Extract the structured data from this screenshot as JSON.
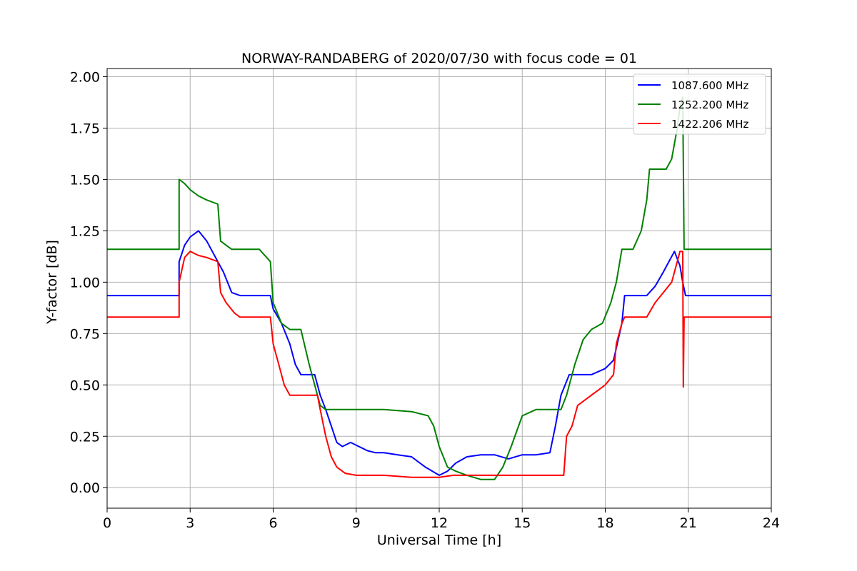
{
  "chart_data": {
    "type": "line",
    "title": "NORWAY-RANDABERG of 2020/07/30 with focus code = 01",
    "xlabel": "Universal Time [h]",
    "ylabel": "Y-factor [dB]",
    "xlim": [
      0,
      24
    ],
    "ylim": [
      -0.1,
      2.04
    ],
    "xticks": [
      0,
      3,
      6,
      9,
      12,
      15,
      18,
      21,
      24
    ],
    "xtick_labels": [
      "0",
      "3",
      "6",
      "9",
      "12",
      "15",
      "18",
      "21",
      "24"
    ],
    "yticks": [
      0,
      0.25,
      0.5,
      0.75,
      1.0,
      1.25,
      1.5,
      1.75,
      2.0
    ],
    "ytick_labels": [
      "0.00",
      "0.25",
      "0.50",
      "0.75",
      "1.00",
      "1.25",
      "1.50",
      "1.75",
      "2.00"
    ],
    "grid": true,
    "legend_position": "top-right",
    "series": [
      {
        "name": "1087.600 MHz",
        "color": "#0000ff",
        "x": [
          0,
          2.6,
          2.6,
          2.8,
          3.0,
          3.3,
          3.6,
          4.0,
          4.2,
          4.5,
          4.8,
          5.9,
          6.0,
          6.3,
          6.6,
          6.8,
          7.0,
          7.5,
          7.7,
          7.9,
          8.1,
          8.3,
          8.5,
          8.8,
          9.1,
          9.4,
          9.7,
          10.0,
          10.5,
          11.0,
          11.5,
          12.0,
          12.3,
          12.6,
          13.0,
          13.5,
          14.0,
          14.5,
          15.0,
          15.5,
          16.0,
          16.2,
          16.4,
          16.7,
          17.0,
          17.5,
          18.0,
          18.3,
          18.6,
          18.7,
          19.0,
          19.5,
          19.8,
          20.1,
          20.3,
          20.5,
          20.7,
          20.8,
          20.9,
          21.5,
          22.5,
          24.0
        ],
        "y": [
          0.935,
          0.935,
          1.1,
          1.18,
          1.22,
          1.25,
          1.2,
          1.1,
          1.05,
          0.95,
          0.935,
          0.935,
          0.87,
          0.8,
          0.7,
          0.6,
          0.55,
          0.55,
          0.45,
          0.38,
          0.3,
          0.22,
          0.2,
          0.22,
          0.2,
          0.18,
          0.17,
          0.17,
          0.16,
          0.15,
          0.1,
          0.06,
          0.08,
          0.12,
          0.15,
          0.16,
          0.16,
          0.14,
          0.16,
          0.16,
          0.17,
          0.3,
          0.45,
          0.55,
          0.55,
          0.55,
          0.58,
          0.62,
          0.8,
          0.935,
          0.935,
          0.935,
          0.98,
          1.05,
          1.1,
          1.15,
          1.08,
          1.0,
          0.935,
          0.935,
          0.935,
          0.935
        ]
      },
      {
        "name": "1252.200 MHz",
        "color": "#008000",
        "x": [
          0,
          2.6,
          2.6,
          2.8,
          3.0,
          3.3,
          3.6,
          4.0,
          4.1,
          4.3,
          4.5,
          5.5,
          5.9,
          6.0,
          6.3,
          6.6,
          7.0,
          7.3,
          7.6,
          7.7,
          7.9,
          8.5,
          9.0,
          10.0,
          11.0,
          11.6,
          11.8,
          12.0,
          12.3,
          12.6,
          13.0,
          13.5,
          14.0,
          14.3,
          14.6,
          15.0,
          15.5,
          16.0,
          16.4,
          16.6,
          16.9,
          17.2,
          17.5,
          17.9,
          18.2,
          18.4,
          18.6,
          19.0,
          19.3,
          19.5,
          19.6,
          20.2,
          20.4,
          20.6,
          20.7,
          20.8,
          20.85,
          21.0,
          24.0
        ],
        "y": [
          1.16,
          1.16,
          1.5,
          1.48,
          1.45,
          1.42,
          1.4,
          1.38,
          1.2,
          1.18,
          1.16,
          1.16,
          1.1,
          0.9,
          0.8,
          0.77,
          0.77,
          0.6,
          0.45,
          0.4,
          0.38,
          0.38,
          0.38,
          0.38,
          0.37,
          0.35,
          0.3,
          0.2,
          0.1,
          0.08,
          0.06,
          0.04,
          0.04,
          0.1,
          0.2,
          0.35,
          0.38,
          0.38,
          0.38,
          0.45,
          0.6,
          0.72,
          0.77,
          0.8,
          0.9,
          1.0,
          1.16,
          1.16,
          1.25,
          1.4,
          1.55,
          1.55,
          1.6,
          1.75,
          1.85,
          1.9,
          1.16,
          1.16,
          1.16
        ]
      },
      {
        "name": "1422.206 MHz",
        "color": "#ff0000",
        "x": [
          0,
          2.6,
          2.6,
          2.8,
          3.0,
          3.3,
          3.6,
          4.0,
          4.1,
          4.3,
          4.6,
          4.8,
          5.9,
          6.0,
          6.2,
          6.4,
          6.6,
          7.0,
          7.6,
          7.7,
          7.9,
          8.1,
          8.3,
          8.6,
          9.0,
          10.0,
          11.0,
          11.5,
          12.0,
          12.5,
          13.0,
          14.0,
          15.0,
          16.0,
          16.5,
          16.6,
          16.8,
          17.0,
          17.5,
          18.0,
          18.3,
          18.4,
          18.6,
          18.7,
          19.0,
          19.5,
          19.8,
          20.1,
          20.4,
          20.6,
          20.7,
          20.8,
          20.82,
          20.85,
          21.0,
          24.0
        ],
        "y": [
          0.83,
          0.83,
          1.0,
          1.12,
          1.15,
          1.13,
          1.12,
          1.1,
          0.95,
          0.9,
          0.85,
          0.83,
          0.83,
          0.7,
          0.6,
          0.5,
          0.45,
          0.45,
          0.45,
          0.38,
          0.25,
          0.15,
          0.1,
          0.07,
          0.06,
          0.06,
          0.05,
          0.05,
          0.05,
          0.06,
          0.06,
          0.06,
          0.06,
          0.06,
          0.06,
          0.25,
          0.3,
          0.4,
          0.45,
          0.5,
          0.55,
          0.7,
          0.8,
          0.83,
          0.83,
          0.83,
          0.9,
          0.95,
          1.0,
          1.1,
          1.15,
          1.15,
          0.49,
          0.83,
          0.83,
          0.83
        ]
      }
    ]
  }
}
